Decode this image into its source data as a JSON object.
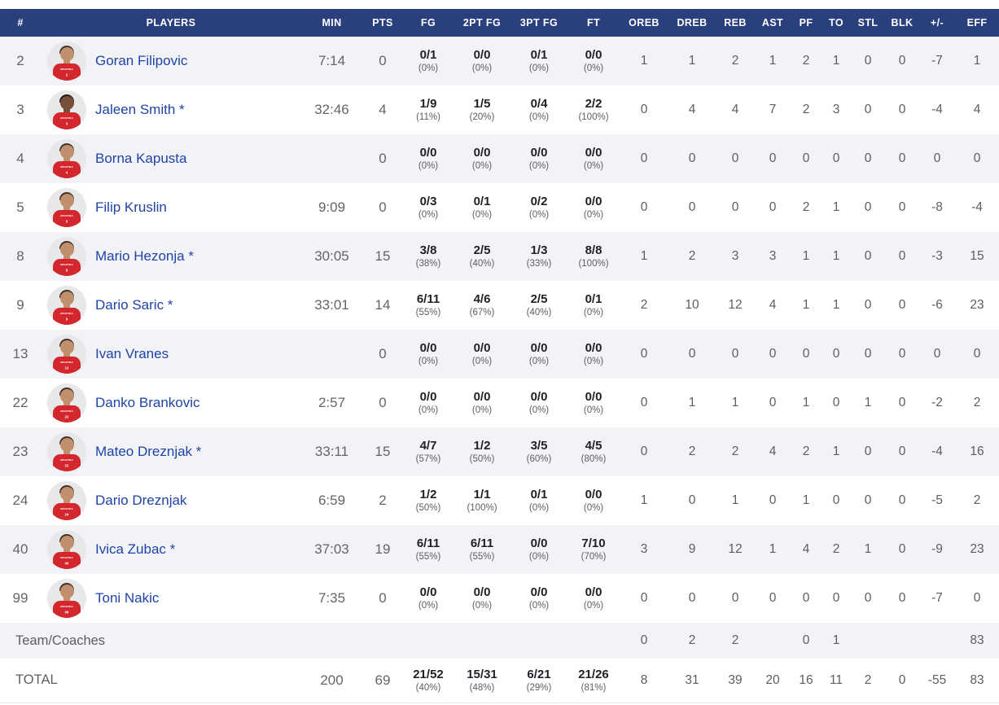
{
  "colors": {
    "header_bg": "#2a3f7e",
    "row_alt_bg": "#f2f3f7",
    "player_name": "#2043a6",
    "jersey_red": "#d3262d",
    "stat_text": "#5c5e63",
    "bold_stat_text": "#212227"
  },
  "avatar": {
    "jersey_text": "HRVATSKA"
  },
  "table": {
    "columns": [
      "#",
      "PLAYERS",
      "MIN",
      "PTS",
      "FG",
      "2PT FG",
      "3PT FG",
      "FT",
      "OREB",
      "DREB",
      "REB",
      "AST",
      "PF",
      "TO",
      "STL",
      "BLK",
      "+/-",
      "EFF"
    ],
    "rows": [
      {
        "num": "2",
        "name": "Goran Filipovic",
        "skin": "light",
        "min": "7:14",
        "pts": "0",
        "fg": "0/1",
        "fgp": "(0%)",
        "p2": "0/0",
        "p2p": "(0%)",
        "p3": "0/1",
        "p3p": "(0%)",
        "ft": "0/0",
        "ftp": "(0%)",
        "oreb": "1",
        "dreb": "1",
        "reb": "2",
        "ast": "1",
        "pf": "2",
        "to": "1",
        "stl": "0",
        "blk": "0",
        "pm": "-7",
        "eff": "1"
      },
      {
        "num": "3",
        "name": "Jaleen Smith *",
        "skin": "dark",
        "min": "32:46",
        "pts": "4",
        "fg": "1/9",
        "fgp": "(11%)",
        "p2": "1/5",
        "p2p": "(20%)",
        "p3": "0/4",
        "p3p": "(0%)",
        "ft": "2/2",
        "ftp": "(100%)",
        "oreb": "0",
        "dreb": "4",
        "reb": "4",
        "ast": "7",
        "pf": "2",
        "to": "3",
        "stl": "0",
        "blk": "0",
        "pm": "-4",
        "eff": "4"
      },
      {
        "num": "4",
        "name": "Borna Kapusta",
        "skin": "light",
        "min": "",
        "pts": "0",
        "fg": "0/0",
        "fgp": "(0%)",
        "p2": "0/0",
        "p2p": "(0%)",
        "p3": "0/0",
        "p3p": "(0%)",
        "ft": "0/0",
        "ftp": "(0%)",
        "oreb": "0",
        "dreb": "0",
        "reb": "0",
        "ast": "0",
        "pf": "0",
        "to": "0",
        "stl": "0",
        "blk": "0",
        "pm": "0",
        "eff": "0"
      },
      {
        "num": "5",
        "name": "Filip Kruslin",
        "skin": "light",
        "min": "9:09",
        "pts": "0",
        "fg": "0/3",
        "fgp": "(0%)",
        "p2": "0/1",
        "p2p": "(0%)",
        "p3": "0/2",
        "p3p": "(0%)",
        "ft": "0/0",
        "ftp": "(0%)",
        "oreb": "0",
        "dreb": "0",
        "reb": "0",
        "ast": "0",
        "pf": "2",
        "to": "1",
        "stl": "0",
        "blk": "0",
        "pm": "-8",
        "eff": "-4"
      },
      {
        "num": "8",
        "name": "Mario Hezonja *",
        "skin": "light",
        "min": "30:05",
        "pts": "15",
        "fg": "3/8",
        "fgp": "(38%)",
        "p2": "2/5",
        "p2p": "(40%)",
        "p3": "1/3",
        "p3p": "(33%)",
        "ft": "8/8",
        "ftp": "(100%)",
        "oreb": "1",
        "dreb": "2",
        "reb": "3",
        "ast": "3",
        "pf": "1",
        "to": "1",
        "stl": "0",
        "blk": "0",
        "pm": "-3",
        "eff": "15"
      },
      {
        "num": "9",
        "name": "Dario Saric *",
        "skin": "light",
        "min": "33:01",
        "pts": "14",
        "fg": "6/11",
        "fgp": "(55%)",
        "p2": "4/6",
        "p2p": "(67%)",
        "p3": "2/5",
        "p3p": "(40%)",
        "ft": "0/1",
        "ftp": "(0%)",
        "oreb": "2",
        "dreb": "10",
        "reb": "12",
        "ast": "4",
        "pf": "1",
        "to": "1",
        "stl": "0",
        "blk": "0",
        "pm": "-6",
        "eff": "23"
      },
      {
        "num": "13",
        "name": "Ivan Vranes",
        "skin": "light",
        "min": "",
        "pts": "0",
        "fg": "0/0",
        "fgp": "(0%)",
        "p2": "0/0",
        "p2p": "(0%)",
        "p3": "0/0",
        "p3p": "(0%)",
        "ft": "0/0",
        "ftp": "(0%)",
        "oreb": "0",
        "dreb": "0",
        "reb": "0",
        "ast": "0",
        "pf": "0",
        "to": "0",
        "stl": "0",
        "blk": "0",
        "pm": "0",
        "eff": "0"
      },
      {
        "num": "22",
        "name": "Danko Brankovic",
        "skin": "light",
        "min": "2:57",
        "pts": "0",
        "fg": "0/0",
        "fgp": "(0%)",
        "p2": "0/0",
        "p2p": "(0%)",
        "p3": "0/0",
        "p3p": "(0%)",
        "ft": "0/0",
        "ftp": "(0%)",
        "oreb": "0",
        "dreb": "1",
        "reb": "1",
        "ast": "0",
        "pf": "1",
        "to": "0",
        "stl": "1",
        "blk": "0",
        "pm": "-2",
        "eff": "2"
      },
      {
        "num": "23",
        "name": "Mateo Dreznjak *",
        "skin": "light",
        "min": "33:11",
        "pts": "15",
        "fg": "4/7",
        "fgp": "(57%)",
        "p2": "1/2",
        "p2p": "(50%)",
        "p3": "3/5",
        "p3p": "(60%)",
        "ft": "4/5",
        "ftp": "(80%)",
        "oreb": "0",
        "dreb": "2",
        "reb": "2",
        "ast": "4",
        "pf": "2",
        "to": "1",
        "stl": "0",
        "blk": "0",
        "pm": "-4",
        "eff": "16"
      },
      {
        "num": "24",
        "name": "Dario Dreznjak",
        "skin": "light",
        "min": "6:59",
        "pts": "2",
        "fg": "1/2",
        "fgp": "(50%)",
        "p2": "1/1",
        "p2p": "(100%)",
        "p3": "0/1",
        "p3p": "(0%)",
        "ft": "0/0",
        "ftp": "(0%)",
        "oreb": "1",
        "dreb": "0",
        "reb": "1",
        "ast": "0",
        "pf": "1",
        "to": "0",
        "stl": "0",
        "blk": "0",
        "pm": "-5",
        "eff": "2"
      },
      {
        "num": "40",
        "name": "Ivica Zubac *",
        "skin": "light",
        "min": "37:03",
        "pts": "19",
        "fg": "6/11",
        "fgp": "(55%)",
        "p2": "6/11",
        "p2p": "(55%)",
        "p3": "0/0",
        "p3p": "(0%)",
        "ft": "7/10",
        "ftp": "(70%)",
        "oreb": "3",
        "dreb": "9",
        "reb": "12",
        "ast": "1",
        "pf": "4",
        "to": "2",
        "stl": "1",
        "blk": "0",
        "pm": "-9",
        "eff": "23"
      },
      {
        "num": "99",
        "name": "Toni Nakic",
        "skin": "light",
        "min": "7:35",
        "pts": "0",
        "fg": "0/0",
        "fgp": "(0%)",
        "p2": "0/0",
        "p2p": "(0%)",
        "p3": "0/0",
        "p3p": "(0%)",
        "ft": "0/0",
        "ftp": "(0%)",
        "oreb": "0",
        "dreb": "0",
        "reb": "0",
        "ast": "0",
        "pf": "0",
        "to": "0",
        "stl": "0",
        "blk": "0",
        "pm": "-7",
        "eff": "0"
      }
    ],
    "team_row": {
      "label": "Team/Coaches",
      "oreb": "0",
      "dreb": "2",
      "reb": "2",
      "ast": "",
      "pf": "0",
      "to": "1",
      "stl": "",
      "blk": "",
      "pm": "",
      "eff": "83"
    },
    "total_row": {
      "label": "TOTAL",
      "min": "200",
      "pts": "69",
      "fg": "21/52",
      "fgp": "(40%)",
      "p2": "15/31",
      "p2p": "(48%)",
      "p3": "6/21",
      "p3p": "(29%)",
      "ft": "21/26",
      "ftp": "(81%)",
      "oreb": "8",
      "dreb": "31",
      "reb": "39",
      "ast": "20",
      "pf": "16",
      "to": "11",
      "stl": "2",
      "blk": "0",
      "pm": "-55",
      "eff": "83"
    }
  }
}
